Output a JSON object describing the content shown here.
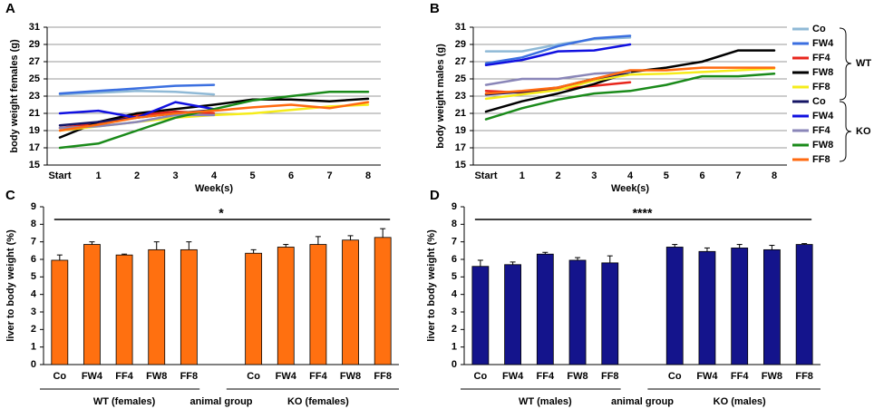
{
  "chart_data": [
    {
      "type": "line",
      "label": "A",
      "ylabel": "body weight females (g)",
      "xlabel": "Week(s)",
      "categories": [
        "Start",
        "1",
        "2",
        "3",
        "4",
        "5",
        "6",
        "7",
        "8"
      ],
      "ylim": [
        15,
        31
      ],
      "yticks": [
        15,
        17,
        19,
        21,
        23,
        25,
        27,
        29,
        31
      ],
      "grid": true,
      "series": [
        {
          "name": "Co",
          "color": "#8fb9d6",
          "values": [
            23.2,
            23.4,
            23.6,
            23.5,
            23.2,
            null,
            null,
            null,
            null
          ]
        },
        {
          "name": "FW4",
          "color": "#3b6fe0",
          "values": [
            23.3,
            23.6,
            23.9,
            24.2,
            24.3,
            null,
            null,
            null,
            null
          ]
        },
        {
          "name": "FF4",
          "color": "#e8261c",
          "values": [
            19.3,
            19.8,
            20.8,
            21.2,
            21.0,
            null,
            null,
            null,
            null
          ]
        },
        {
          "name": "FW8",
          "color": "#000000",
          "values": [
            18.2,
            20.0,
            21.0,
            21.5,
            22.0,
            22.6,
            22.6,
            22.4,
            22.7
          ]
        },
        {
          "name": "FF8",
          "color": "#f5ec1a",
          "values": [
            19.0,
            19.5,
            20.0,
            20.5,
            20.8,
            21.0,
            21.4,
            21.8,
            22.0
          ]
        },
        {
          "name": "Co",
          "color": "#141464",
          "values": [
            19.6,
            20.0,
            20.5,
            21.0,
            21.4,
            null,
            null,
            null,
            null
          ]
        },
        {
          "name": "FW4",
          "color": "#1010e0",
          "values": [
            21.0,
            21.3,
            20.5,
            22.3,
            21.5,
            null,
            null,
            null,
            null
          ]
        },
        {
          "name": "FF4",
          "color": "#8a86b8",
          "values": [
            19.3,
            19.5,
            20.0,
            20.8,
            20.8,
            null,
            null,
            null,
            null
          ]
        },
        {
          "name": "FW8",
          "color": "#1a8a1a",
          "values": [
            17.0,
            17.5,
            19.0,
            20.5,
            21.5,
            22.5,
            23.0,
            23.5,
            23.5
          ]
        },
        {
          "name": "FF8",
          "color": "#ff6a10",
          "values": [
            19.0,
            19.7,
            20.5,
            21.0,
            21.3,
            21.7,
            22.0,
            21.6,
            22.3
          ]
        }
      ]
    },
    {
      "type": "line",
      "label": "B",
      "ylabel": "body weight males (g)",
      "xlabel": "Week(s)",
      "categories": [
        "Start",
        "1",
        "2",
        "3",
        "4",
        "5",
        "6",
        "7",
        "8"
      ],
      "ylim": [
        15,
        31
      ],
      "yticks": [
        15,
        17,
        19,
        21,
        23,
        25,
        27,
        29,
        31
      ],
      "grid": true,
      "legend_groups": [
        "WT",
        "KO"
      ],
      "series": [
        {
          "name": "Co",
          "color": "#8fb9d6",
          "values": [
            28.2,
            28.2,
            29.0,
            29.6,
            29.8,
            null,
            null,
            null,
            null
          ]
        },
        {
          "name": "FW4",
          "color": "#3b6fe0",
          "values": [
            26.8,
            27.5,
            28.8,
            29.7,
            30.0,
            null,
            null,
            null,
            null
          ]
        },
        {
          "name": "FF4",
          "color": "#e8261c",
          "values": [
            23.6,
            23.4,
            23.8,
            24.2,
            24.6,
            null,
            null,
            null,
            null
          ]
        },
        {
          "name": "FW8",
          "color": "#000000",
          "values": [
            21.2,
            22.4,
            23.3,
            24.4,
            25.8,
            26.3,
            27.0,
            28.3,
            28.3
          ]
        },
        {
          "name": "FF8",
          "color": "#f5ec1a",
          "values": [
            22.7,
            23.2,
            23.7,
            24.8,
            25.5,
            25.6,
            25.8,
            26.0,
            26.2
          ]
        },
        {
          "name": "Co",
          "color": "#141464",
          "values": [
            23.2,
            23.5,
            24.0,
            25.0,
            25.8,
            null,
            null,
            null,
            null
          ]
        },
        {
          "name": "FW4",
          "color": "#1010e0",
          "values": [
            26.6,
            27.2,
            28.2,
            28.3,
            29.0,
            null,
            null,
            null,
            null
          ]
        },
        {
          "name": "FF4",
          "color": "#8a86b8",
          "values": [
            24.3,
            25.0,
            25.0,
            25.6,
            25.8,
            null,
            null,
            null,
            null
          ]
        },
        {
          "name": "FW8",
          "color": "#1a8a1a",
          "values": [
            20.3,
            21.6,
            22.6,
            23.3,
            23.6,
            24.3,
            25.3,
            25.3,
            25.6
          ]
        },
        {
          "name": "FF8",
          "color": "#ff6a10",
          "values": [
            23.3,
            23.6,
            24.0,
            25.0,
            26.0,
            26.0,
            26.3,
            26.3,
            26.3
          ]
        }
      ]
    },
    {
      "type": "bar",
      "label": "C",
      "ylabel": "liver to body weight (%)",
      "annotation": "*",
      "categories": [
        "Co",
        "FW4",
        "FF4",
        "FW8",
        "FF8",
        null,
        "Co",
        "FW4",
        "FF4",
        "FW8",
        "FF8"
      ],
      "values": [
        5.95,
        6.85,
        6.25,
        6.55,
        6.55,
        null,
        6.35,
        6.7,
        6.85,
        7.1,
        7.25
      ],
      "errors": [
        0.3,
        0.15,
        0.05,
        0.45,
        0.45,
        null,
        0.2,
        0.15,
        0.45,
        0.25,
        0.5
      ],
      "color": "#ff7010",
      "ylim": [
        0,
        9
      ],
      "yticks": [
        0,
        1,
        2,
        3,
        4,
        5,
        6,
        7,
        8,
        9
      ],
      "group_labels": [
        "WT (females)",
        "animal group",
        "KO (females)"
      ]
    },
    {
      "type": "bar",
      "label": "D",
      "ylabel": "liver to body weight (%)",
      "annotation": "****",
      "categories": [
        "Co",
        "FW4",
        "FF4",
        "FW8",
        "FF8",
        null,
        "Co",
        "FW4",
        "FF4",
        "FW8",
        "FF8"
      ],
      "values": [
        5.6,
        5.7,
        6.3,
        5.95,
        5.8,
        null,
        6.7,
        6.45,
        6.65,
        6.55,
        6.85
      ],
      "errors": [
        0.35,
        0.15,
        0.1,
        0.15,
        0.4,
        null,
        0.15,
        0.2,
        0.2,
        0.25,
        0.05
      ],
      "color": "#14148c",
      "ylim": [
        0,
        9
      ],
      "yticks": [
        0,
        1,
        2,
        3,
        4,
        5,
        6,
        7,
        8,
        9
      ],
      "group_labels": [
        "WT (males)",
        "animal group",
        "KO (males)"
      ]
    }
  ]
}
